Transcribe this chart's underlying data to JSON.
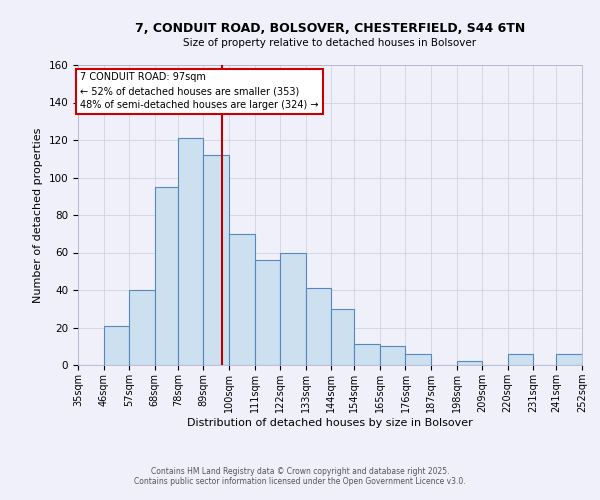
{
  "title": "7, CONDUIT ROAD, BOLSOVER, CHESTERFIELD, S44 6TN",
  "subtitle": "Size of property relative to detached houses in Bolsover",
  "xlabel": "Distribution of detached houses by size in Bolsover",
  "ylabel": "Number of detached properties",
  "bar_labels": [
    "35sqm",
    "46sqm",
    "57sqm",
    "68sqm",
    "78sqm",
    "89sqm",
    "100sqm",
    "111sqm",
    "122sqm",
    "133sqm",
    "144sqm",
    "154sqm",
    "165sqm",
    "176sqm",
    "187sqm",
    "198sqm",
    "209sqm",
    "220sqm",
    "231sqm",
    "241sqm",
    "252sqm"
  ],
  "bin_edges": [
    35,
    46,
    57,
    68,
    78,
    89,
    100,
    111,
    122,
    133,
    144,
    154,
    165,
    176,
    187,
    198,
    209,
    220,
    231,
    241,
    252
  ],
  "heights": [
    0,
    21,
    40,
    95,
    121,
    112,
    70,
    56,
    60,
    41,
    30,
    11,
    10,
    6,
    0,
    2,
    0,
    6,
    0,
    6
  ],
  "bar_color": "#cce0f0",
  "bar_edge_color": "#5588bb",
  "vline_x": 97,
  "vline_color": "#bb0000",
  "annotation_title": "7 CONDUIT ROAD: 97sqm",
  "annotation_line1": "← 52% of detached houses are smaller (353)",
  "annotation_line2": "48% of semi-detached houses are larger (324) →",
  "annotation_box_color": "#ffffff",
  "annotation_box_edge": "#cc0000",
  "ylim": [
    0,
    160
  ],
  "yticks": [
    0,
    20,
    40,
    60,
    80,
    100,
    120,
    140,
    160
  ],
  "grid_color": "#ccccdd",
  "bg_color": "#f0f0fa",
  "footnote1": "Contains HM Land Registry data © Crown copyright and database right 2025.",
  "footnote2": "Contains public sector information licensed under the Open Government Licence v3.0."
}
